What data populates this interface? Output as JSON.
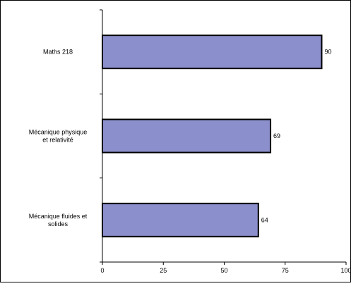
{
  "chart_data": {
    "type": "bar",
    "orientation": "horizontal",
    "categories": [
      [
        "Maths 218"
      ],
      [
        "Mécanique physique",
        "et relativité"
      ],
      [
        "Mécanique fluides et",
        "solides"
      ]
    ],
    "values": [
      90,
      69,
      64
    ],
    "data_labels": [
      "90",
      "69",
      "64"
    ],
    "x_ticks": [
      "0",
      "25",
      "50",
      "75",
      "100"
    ],
    "xlim": [
      0,
      100
    ],
    "title": "",
    "xlabel": "",
    "ylabel": "",
    "grid": false,
    "legend": "none",
    "bar_color": "#8B8FCB"
  }
}
